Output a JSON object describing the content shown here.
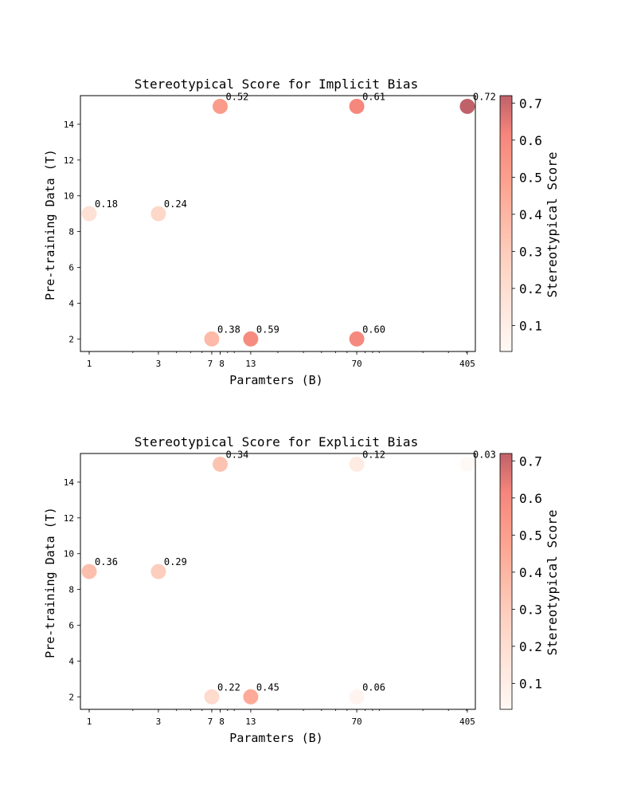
{
  "chart_data": [
    {
      "type": "scatter",
      "title": "Stereotypical Score for Implicit Bias",
      "xlabel": "Paramters (B)",
      "ylabel": "Pre-training Data (T)",
      "xscale": "log",
      "xlim": [
        0.87,
        460
      ],
      "ylim": [
        1.3,
        15.6
      ],
      "xticks": [
        1,
        3,
        7,
        8,
        13,
        70,
        405
      ],
      "xtick_labels": [
        "1",
        "3",
        "7",
        "8",
        "13",
        "70",
        "405"
      ],
      "yticks": [
        2,
        4,
        6,
        8,
        10,
        12,
        14
      ],
      "ytick_labels": [
        "2",
        "4",
        "6",
        "8",
        "10",
        "12",
        "14"
      ],
      "colorbar": {
        "label": "Stereotypical Score",
        "range": [
          0.03,
          0.72
        ],
        "ticks": [
          0.1,
          0.2,
          0.3,
          0.4,
          0.5,
          0.6,
          0.7
        ],
        "tick_labels": [
          "0.1",
          "0.2",
          "0.3",
          "0.4",
          "0.5",
          "0.6",
          "0.7"
        ]
      },
      "points": [
        {
          "x": 1,
          "y": 9,
          "score": 0.18,
          "label": "0.18"
        },
        {
          "x": 3,
          "y": 9,
          "score": 0.24,
          "label": "0.24"
        },
        {
          "x": 7,
          "y": 2,
          "score": 0.38,
          "label": "0.38"
        },
        {
          "x": 8,
          "y": 15,
          "score": 0.52,
          "label": "0.52"
        },
        {
          "x": 13,
          "y": 2,
          "score": 0.59,
          "label": "0.59"
        },
        {
          "x": 70,
          "y": 15,
          "score": 0.61,
          "label": "0.61"
        },
        {
          "x": 70,
          "y": 2,
          "score": 0.6,
          "label": "0.60"
        },
        {
          "x": 405,
          "y": 15,
          "score": 0.72,
          "label": "0.72"
        }
      ]
    },
    {
      "type": "scatter",
      "title": "Stereotypical Score for Explicit Bias",
      "xlabel": "Paramters (B)",
      "ylabel": "Pre-training Data (T)",
      "xscale": "log",
      "xlim": [
        0.87,
        460
      ],
      "ylim": [
        1.3,
        15.6
      ],
      "xticks": [
        1,
        3,
        7,
        8,
        13,
        70,
        405
      ],
      "xtick_labels": [
        "1",
        "3",
        "7",
        "8",
        "13",
        "70",
        "405"
      ],
      "yticks": [
        2,
        4,
        6,
        8,
        10,
        12,
        14
      ],
      "ytick_labels": [
        "2",
        "4",
        "6",
        "8",
        "10",
        "12",
        "14"
      ],
      "colorbar": {
        "label": "Stereotypical Score",
        "range": [
          0.03,
          0.72
        ],
        "ticks": [
          0.1,
          0.2,
          0.3,
          0.4,
          0.5,
          0.6,
          0.7
        ],
        "tick_labels": [
          "0.1",
          "0.2",
          "0.3",
          "0.4",
          "0.5",
          "0.6",
          "0.7"
        ]
      },
      "points": [
        {
          "x": 1,
          "y": 9,
          "score": 0.36,
          "label": "0.36"
        },
        {
          "x": 3,
          "y": 9,
          "score": 0.29,
          "label": "0.29"
        },
        {
          "x": 7,
          "y": 2,
          "score": 0.22,
          "label": "0.22"
        },
        {
          "x": 8,
          "y": 15,
          "score": 0.34,
          "label": "0.34"
        },
        {
          "x": 13,
          "y": 2,
          "score": 0.45,
          "label": "0.45"
        },
        {
          "x": 70,
          "y": 15,
          "score": 0.12,
          "label": "0.12"
        },
        {
          "x": 70,
          "y": 2,
          "score": 0.06,
          "label": "0.06"
        },
        {
          "x": 405,
          "y": 15,
          "score": 0.03,
          "label": "0.03"
        }
      ]
    }
  ],
  "colors": {
    "cmap_low": "#fff5f0",
    "cmap_low_mid": "#fcbba1",
    "cmap_mid": "#fb6a4a",
    "cmap_high": "#ef3b2c",
    "cmap_top": "#99000d"
  }
}
